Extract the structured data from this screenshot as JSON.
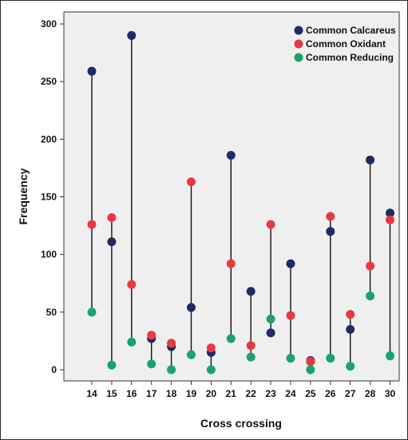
{
  "chart_data": {
    "type": "scatter",
    "subtype": "dot-range",
    "title": "",
    "xlabel": "Cross crossing",
    "ylabel": "Frequency",
    "categories": [
      "14",
      "15",
      "16",
      "17",
      "18",
      "19",
      "20",
      "21",
      "22",
      "23",
      "24",
      "25",
      "26",
      "27",
      "28",
      "30"
    ],
    "ylim": [
      0,
      300
    ],
    "yticks": [
      0,
      50,
      100,
      150,
      200,
      250,
      300
    ],
    "grid": false,
    "legend_position": "top-right",
    "series": [
      {
        "name": "Common Calcareus",
        "color": "#1f2a6b",
        "values": [
          259,
          111,
          290,
          27,
          20,
          54,
          15,
          186,
          68,
          32,
          92,
          8,
          120,
          35,
          182,
          136
        ]
      },
      {
        "name": "Common Oxidant",
        "color": "#e8393f",
        "values": [
          126,
          132,
          74,
          30,
          23,
          163,
          19,
          92,
          21,
          126,
          47,
          7,
          133,
          48,
          90,
          130
        ]
      },
      {
        "name": "Common Reducing",
        "color": "#1aa36b",
        "values": [
          50,
          4,
          24,
          5,
          0,
          13,
          0,
          27,
          11,
          44,
          10,
          0,
          10,
          3,
          64,
          12
        ]
      }
    ]
  }
}
